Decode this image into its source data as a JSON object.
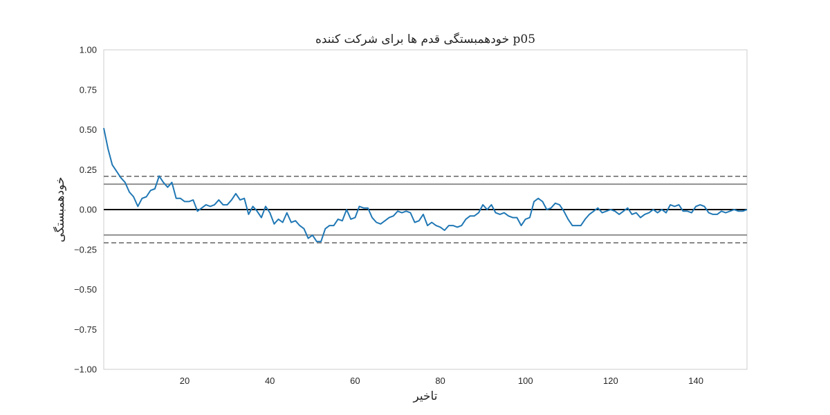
{
  "chart_data": {
    "type": "line",
    "title": "خودهمبستگی قدم ها برای شرکت کننده p05",
    "xlabel": "تاخیر",
    "ylabel": "خودهمبستگی",
    "xlim": [
      1,
      152
    ],
    "ylim": [
      -1.0,
      1.0
    ],
    "grid": false,
    "x_ticks": [
      20,
      40,
      60,
      80,
      100,
      120,
      140
    ],
    "y_ticks": [
      1.0,
      0.75,
      0.5,
      0.25,
      0.0,
      -0.25,
      -0.5,
      -0.75,
      -1.0
    ],
    "x_tick_labels": [
      "20",
      "40",
      "60",
      "80",
      "100",
      "120",
      "140"
    ],
    "y_tick_labels": [
      "1.00",
      "0.75",
      "0.50",
      "0.25",
      "0.00",
      "−0.25",
      "−0.50",
      "−0.75",
      "−1.00"
    ],
    "reference_lines": [
      {
        "y": 0.0,
        "style": "solid",
        "color": "#000000"
      },
      {
        "y": 0.159,
        "style": "solid",
        "color": "#808080"
      },
      {
        "y": -0.159,
        "style": "solid",
        "color": "#808080"
      },
      {
        "y": 0.208,
        "style": "dashed",
        "color": "#808080"
      },
      {
        "y": -0.208,
        "style": "dashed",
        "color": "#808080"
      }
    ],
    "series": [
      {
        "color": "#1f77b4",
        "x": [
          1,
          2,
          3,
          4,
          5,
          6,
          7,
          8,
          9,
          10,
          11,
          12,
          13,
          14,
          15,
          16,
          17,
          18,
          19,
          20,
          21,
          22,
          23,
          24,
          25,
          26,
          27,
          28,
          29,
          30,
          31,
          32,
          33,
          34,
          35,
          36,
          37,
          38,
          39,
          40,
          41,
          42,
          43,
          44,
          45,
          46,
          47,
          48,
          49,
          50,
          51,
          52,
          53,
          54,
          55,
          56,
          57,
          58,
          59,
          60,
          61,
          62,
          63,
          64,
          65,
          66,
          67,
          68,
          69,
          70,
          71,
          72,
          73,
          74,
          75,
          76,
          77,
          78,
          79,
          80,
          81,
          82,
          83,
          84,
          85,
          86,
          87,
          88,
          89,
          90,
          91,
          92,
          93,
          94,
          95,
          96,
          97,
          98,
          99,
          100,
          101,
          102,
          103,
          104,
          105,
          106,
          107,
          108,
          109,
          110,
          111,
          112,
          113,
          114,
          115,
          116,
          117,
          118,
          119,
          120,
          121,
          122,
          123,
          124,
          125,
          126,
          127,
          128,
          129,
          130,
          131,
          132,
          133,
          134,
          135,
          136,
          137,
          138,
          139,
          140,
          141,
          142,
          143,
          144,
          145,
          146,
          147,
          148,
          149,
          150,
          151,
          152
        ],
        "values": [
          0.51,
          0.38,
          0.28,
          0.24,
          0.2,
          0.17,
          0.11,
          0.08,
          0.02,
          0.07,
          0.08,
          0.12,
          0.13,
          0.21,
          0.17,
          0.14,
          0.17,
          0.07,
          0.07,
          0.05,
          0.05,
          0.06,
          -0.01,
          0.01,
          0.03,
          0.02,
          0.03,
          0.06,
          0.03,
          0.03,
          0.06,
          0.1,
          0.06,
          0.07,
          -0.03,
          0.02,
          -0.01,
          -0.05,
          0.02,
          -0.02,
          -0.09,
          -0.06,
          -0.08,
          -0.02,
          -0.08,
          -0.07,
          -0.1,
          -0.12,
          -0.18,
          -0.16,
          -0.2,
          -0.2,
          -0.12,
          -0.1,
          -0.1,
          -0.06,
          -0.07,
          0.0,
          -0.06,
          -0.05,
          0.02,
          0.01,
          0.01,
          -0.05,
          -0.08,
          -0.09,
          -0.07,
          -0.05,
          -0.04,
          -0.01,
          -0.02,
          -0.01,
          -0.02,
          -0.08,
          -0.07,
          -0.03,
          -0.1,
          -0.08,
          -0.1,
          -0.11,
          -0.13,
          -0.1,
          -0.1,
          -0.11,
          -0.1,
          -0.06,
          -0.04,
          -0.04,
          -0.02,
          0.03,
          0.0,
          0.03,
          -0.02,
          -0.03,
          -0.02,
          -0.04,
          -0.05,
          -0.05,
          -0.1,
          -0.06,
          -0.05,
          0.05,
          0.07,
          0.05,
          0.0,
          0.01,
          0.04,
          0.03,
          -0.01,
          -0.06,
          -0.1,
          -0.1,
          -0.1,
          -0.06,
          -0.03,
          -0.01,
          0.01,
          -0.02,
          -0.01,
          0.0,
          -0.01,
          -0.03,
          -0.01,
          0.01,
          -0.03,
          -0.02,
          -0.05,
          -0.03,
          -0.02,
          0.0,
          -0.02,
          0.0,
          -0.02,
          0.03,
          0.02,
          0.03,
          -0.01,
          -0.01,
          -0.02,
          0.02,
          0.03,
          0.02,
          -0.02,
          -0.03,
          -0.03,
          -0.01,
          -0.02,
          -0.01,
          0.0,
          -0.01,
          -0.01,
          0.0
        ]
      }
    ]
  }
}
